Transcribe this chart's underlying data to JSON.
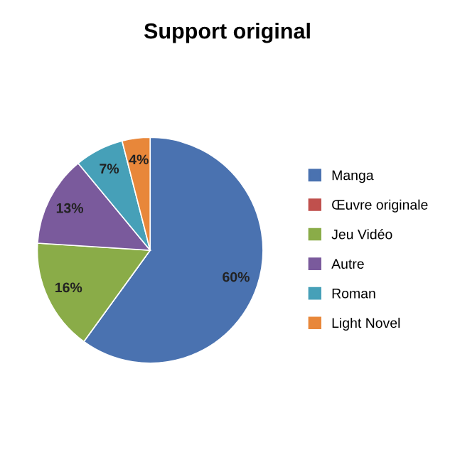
{
  "chart_data": {
    "type": "pie",
    "title": "Support original",
    "categories": [
      "Manga",
      "Œuvre originale",
      "Jeu Vidéo",
      "Autre",
      "Roman",
      "Light Novel"
    ],
    "values": [
      60,
      0,
      16,
      13,
      7,
      4
    ],
    "colors": [
      "#4a72b0",
      "#c0504d",
      "#8aac48",
      "#7a5a9c",
      "#46a0b8",
      "#e8873a"
    ],
    "value_labels": [
      "60%",
      null,
      "16%",
      "13%",
      "7%",
      "4%"
    ],
    "legend": "right"
  }
}
